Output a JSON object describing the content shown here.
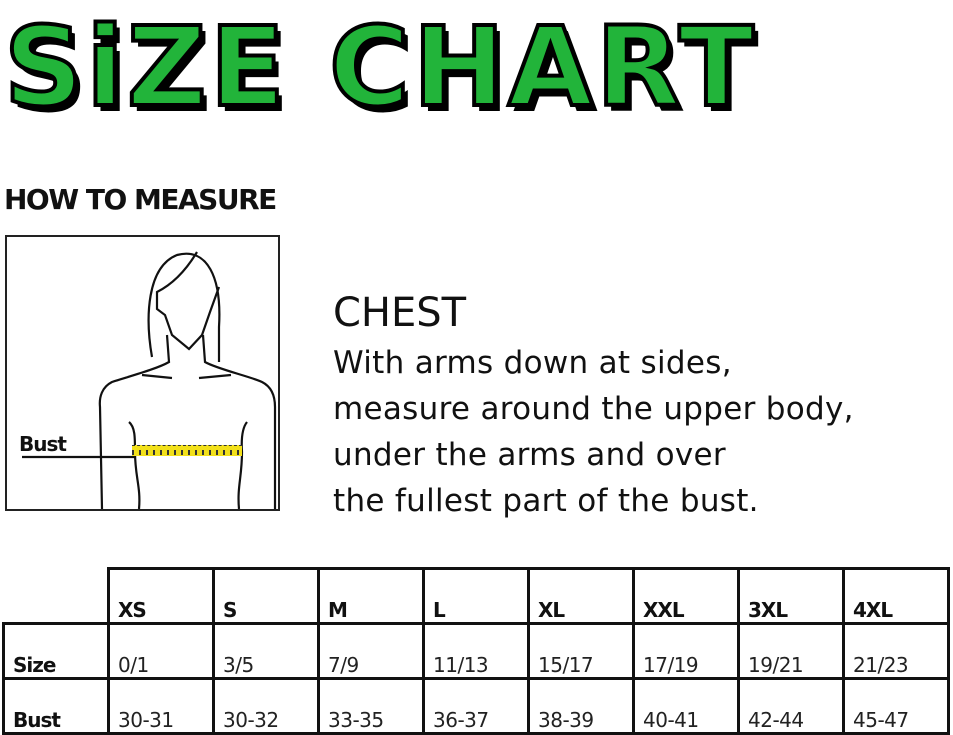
{
  "title": "SiZE CHART",
  "how_to_measure": "HOW TO MEASURE",
  "figure": {
    "bust_label": "Bust",
    "tape_color": "#f2e01a"
  },
  "chest": {
    "heading": "CHEST",
    "lines": [
      "With arms down at sides,",
      "measure around the upper body,",
      "under the arms and over",
      "the fullest part of the bust."
    ]
  },
  "table": {
    "sizes": [
      "XS",
      "S",
      "M",
      "L",
      "XL",
      "XXL",
      "3XL",
      "4XL"
    ],
    "rows": [
      {
        "label": "Size",
        "values": [
          "0/1",
          "3/5",
          "7/9",
          "11/13",
          "15/17",
          "17/19",
          "19/21",
          "21/23"
        ]
      },
      {
        "label": "Bust",
        "values": [
          "30-31",
          "30-32",
          "33-35",
          "36-37",
          "38-39",
          "40-41",
          "42-44",
          "45-47"
        ]
      }
    ]
  },
  "colors": {
    "title_green": "#22b43a"
  }
}
